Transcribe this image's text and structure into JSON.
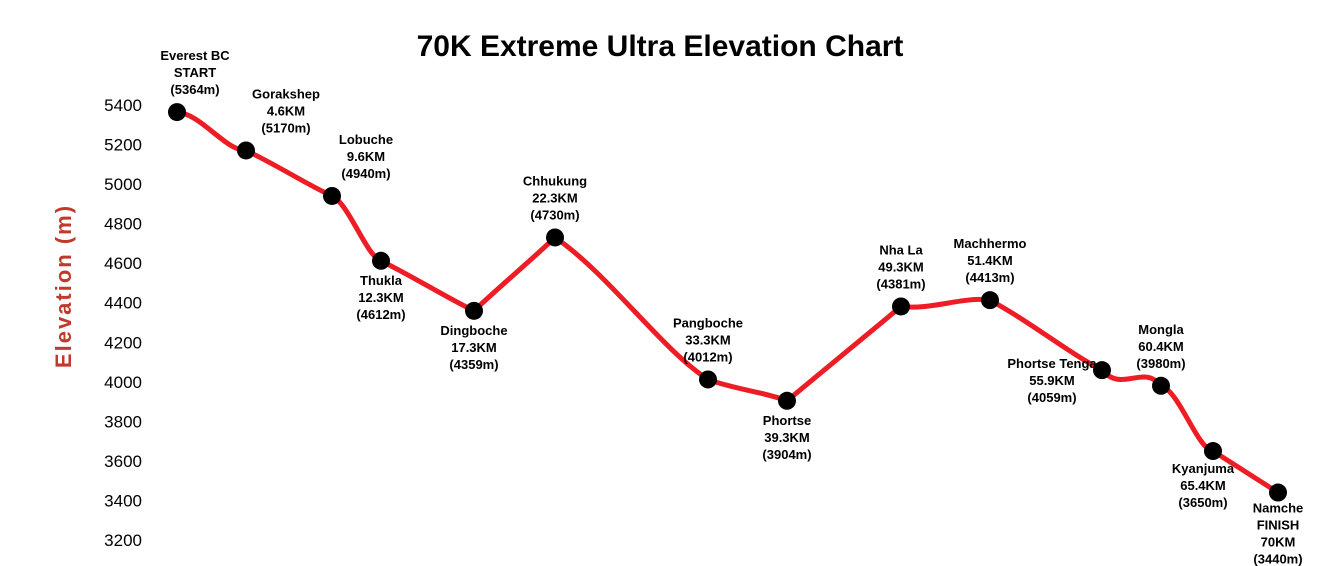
{
  "chart_data": {
    "type": "line",
    "title": "70K Extreme Ultra Elevation Chart",
    "ylabel": "Elevation (m)",
    "xlabel": "",
    "ylim": [
      3200,
      5400
    ],
    "yticks": [
      5400,
      5200,
      5000,
      4800,
      4600,
      4400,
      4200,
      4000,
      3800,
      3600,
      3400,
      3200
    ],
    "grid": false,
    "line_color": "#ee1c24",
    "marker_color": "#000000",
    "label_color": "#c0392b",
    "checkpoints": [
      {
        "lines": [
          "Everest BC",
          "START",
          "(5364m)"
        ],
        "km": 0,
        "elev": 5364
      },
      {
        "lines": [
          "Gorakshep",
          "4.6KM",
          "(5170m)"
        ],
        "km": 4.6,
        "elev": 5170
      },
      {
        "lines": [
          "Lobuche",
          "9.6KM",
          "(4940m)"
        ],
        "km": 9.6,
        "elev": 4940
      },
      {
        "lines": [
          "Thukla",
          "12.3KM",
          "(4612m)"
        ],
        "km": 12.3,
        "elev": 4612
      },
      {
        "lines": [
          "Dingboche",
          "17.3KM",
          "(4359m)"
        ],
        "km": 17.3,
        "elev": 4359
      },
      {
        "lines": [
          "Chhukung",
          "22.3KM",
          "(4730m)"
        ],
        "km": 22.3,
        "elev": 4730
      },
      {
        "lines": [
          "Pangboche",
          "33.3KM",
          "(4012m)"
        ],
        "km": 33.3,
        "elev": 4012
      },
      {
        "lines": [
          "Phortse",
          "39.3KM",
          "(3904m)"
        ],
        "km": 39.3,
        "elev": 3904
      },
      {
        "lines": [
          "Nha La",
          "49.3KM",
          "(4381m)"
        ],
        "km": 49.3,
        "elev": 4381
      },
      {
        "lines": [
          "Machhermo",
          "51.4KM",
          "(4413m)"
        ],
        "km": 51.4,
        "elev": 4413
      },
      {
        "lines": [
          "Phortse Tenga",
          "55.9KM",
          "(4059m)"
        ],
        "km": 55.9,
        "elev": 4059
      },
      {
        "lines": [
          "Mongla",
          "60.4KM",
          "(3980m)"
        ],
        "km": 60.4,
        "elev": 3980
      },
      {
        "lines": [
          "Kyanjuma",
          "65.4KM",
          "(3650m)"
        ],
        "km": 65.4,
        "elev": 3650
      },
      {
        "lines": [
          "Namche",
          "FINISH",
          "70KM",
          "(3440m)"
        ],
        "km": 70,
        "elev": 3440
      }
    ]
  }
}
